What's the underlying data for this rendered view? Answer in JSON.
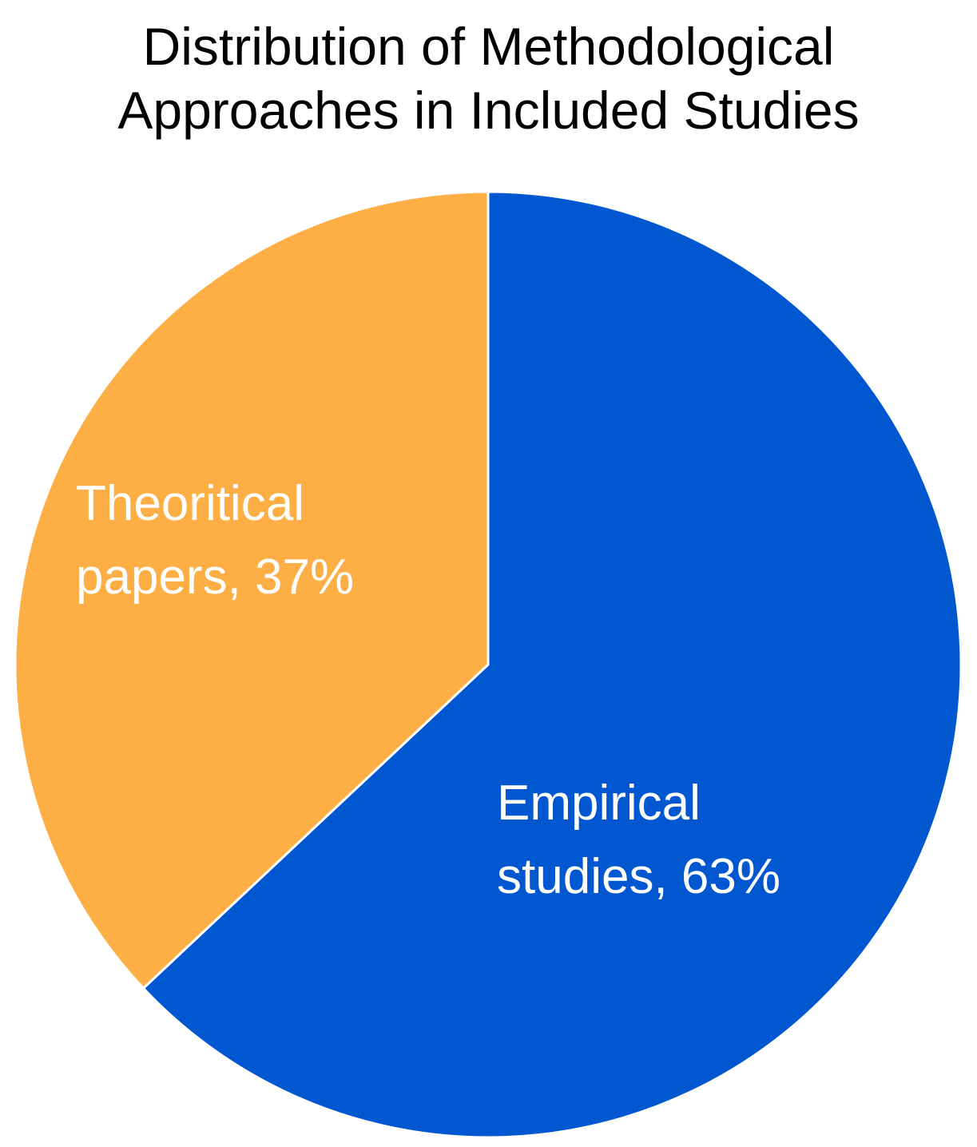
{
  "chart_data": {
    "type": "pie",
    "title": "Distribution of Methodological Approaches in Included Studies",
    "categories": [
      "Empirical studies",
      "Theoritical papers"
    ],
    "values": [
      63,
      37
    ],
    "value_labels": [
      "Empirical studies, 63%",
      "Theoritical papers, 37%"
    ],
    "colors": [
      "#0057d0",
      "#fdae45"
    ]
  }
}
